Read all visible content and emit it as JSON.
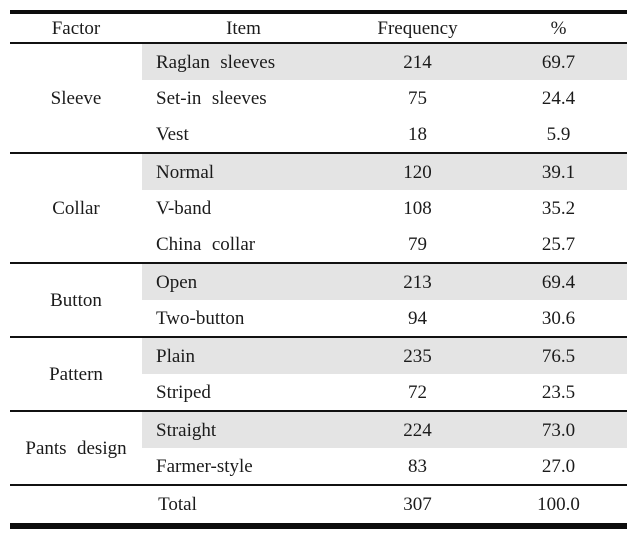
{
  "table": {
    "columns": [
      "Factor",
      "Item",
      "Frequency",
      "%"
    ],
    "groups": [
      {
        "factor": "Sleeve",
        "rows": [
          {
            "item": "Raglan sleeves",
            "frequency": "214",
            "percent": "69.7"
          },
          {
            "item": "Set-in sleeves",
            "frequency": "75",
            "percent": "24.4"
          },
          {
            "item": "Vest",
            "frequency": "18",
            "percent": "5.9"
          }
        ]
      },
      {
        "factor": "Collar",
        "rows": [
          {
            "item": "Normal",
            "frequency": "120",
            "percent": "39.1"
          },
          {
            "item": "V-band",
            "frequency": "108",
            "percent": "35.2"
          },
          {
            "item": "China collar",
            "frequency": "79",
            "percent": "25.7"
          }
        ]
      },
      {
        "factor": "Button",
        "rows": [
          {
            "item": "Open",
            "frequency": "213",
            "percent": "69.4"
          },
          {
            "item": "Two-button",
            "frequency": "94",
            "percent": "30.6"
          }
        ]
      },
      {
        "factor": "Pattern",
        "rows": [
          {
            "item": "Plain",
            "frequency": "235",
            "percent": "76.5"
          },
          {
            "item": "Striped",
            "frequency": "72",
            "percent": "23.5"
          }
        ]
      },
      {
        "factor": "Pants design",
        "rows": [
          {
            "item": "Straight",
            "frequency": "224",
            "percent": "73.0"
          },
          {
            "item": "Farmer-style",
            "frequency": "83",
            "percent": "27.0"
          }
        ]
      }
    ],
    "total": {
      "label": "Total",
      "frequency": "307",
      "percent": "100.0"
    }
  },
  "colors": {
    "row_shading": "#e4e4e4",
    "rule": "#111111",
    "text": "#1b1b1b",
    "background": "#ffffff"
  }
}
